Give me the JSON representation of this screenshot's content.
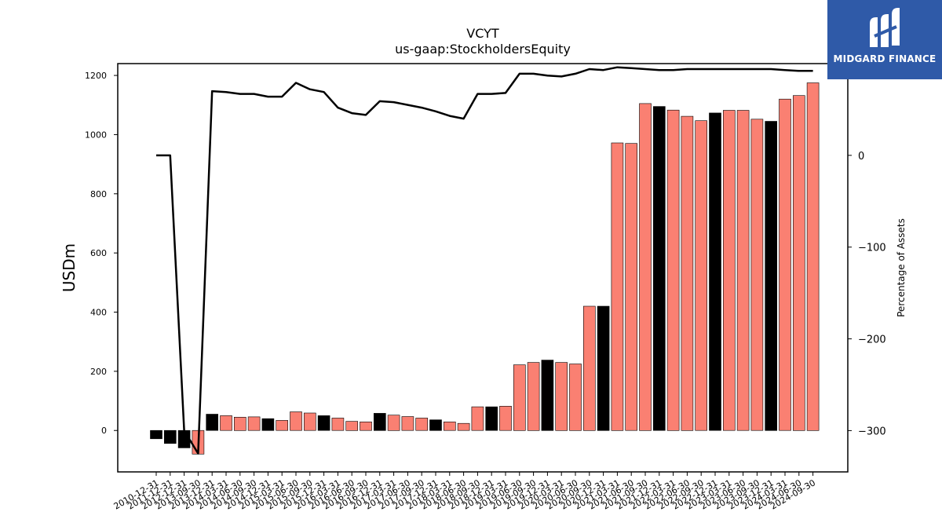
{
  "logo": {
    "text": "MIDGARD FINANCE",
    "color": "#2f5aa8"
  },
  "chart_data": {
    "type": "bar",
    "title": "VCYT",
    "subtitle": "us-gaap:StockholdersEquity",
    "ylabel": "USDm",
    "y2label": "Percentage of Assets",
    "ylim": [
      -140,
      1240
    ],
    "y2lim": [
      -345,
      100
    ],
    "yticks": [
      0,
      200,
      400,
      600,
      800,
      1000,
      1200
    ],
    "y2ticks": [
      0,
      -100,
      -200,
      -300
    ],
    "y2ticklabels": [
      "0",
      "−100",
      "−200",
      "−300"
    ],
    "bar_colors": {
      "annual": "#000000",
      "quarterly": "#fa8072"
    },
    "line_color": "#000000",
    "categories": [
      "2010-12-31",
      "2011-12-31",
      "2012-12-31",
      "2013-09-30",
      "2013-12-31",
      "2014-03-31",
      "2014-06-30",
      "2014-09-30",
      "2014-12-31",
      "2015-03-31",
      "2015-06-30",
      "2015-09-30",
      "2015-12-31",
      "2016-03-31",
      "2016-06-30",
      "2016-09-30",
      "2016-12-31",
      "2017-03-31",
      "2017-06-30",
      "2017-09-30",
      "2017-12-31",
      "2018-03-31",
      "2018-06-30",
      "2018-09-30",
      "2018-12-31",
      "2019-03-31",
      "2019-06-30",
      "2019-09-30",
      "2019-12-31",
      "2020-03-31",
      "2020-06-30",
      "2020-09-30",
      "2020-12-31",
      "2021-03-31",
      "2021-06-30",
      "2021-09-30",
      "2021-12-31",
      "2022-03-31",
      "2022-06-30",
      "2022-09-30",
      "2022-12-31",
      "2023-03-31",
      "2023-06-30",
      "2023-09-30",
      "2023-12-31",
      "2024-03-31",
      "2024-06-30",
      "2024-09-30"
    ],
    "x_tick_labels": [
      "2010-12-31",
      "2011-12-31",
      "2012-12-31",
      "2013-09-30",
      "2013-12-31",
      "2014-03-31",
      "2014-06-30",
      "2014-09-30",
      "2014-12-31",
      "2015-03-31",
      "2015-06-30",
      "2015-09-30",
      "2015-12-31",
      "2016-03-31",
      "2016-06-30",
      "2016-09-30",
      "2016-12-31",
      "2017-03-31",
      "2017-06-30",
      "2017-09-30",
      "2017-12-31",
      "2018-03-31",
      "2018-06-30",
      "2018-09-30",
      "2018-12-31",
      "2019-03-31",
      "2019-06-30",
      "2019-09-30",
      "2019-12-31",
      "2020-03-31",
      "2020-06-30",
      "2020-09-30",
      "2020-12-31",
      "2021-03-31",
      "2021-06-30",
      "2021-09-30",
      "2021-12-31",
      "2022-03-31",
      "2022-06-30",
      "2022-09-30",
      "2022-12-31",
      "2023-03-31",
      "2023-06-30",
      "2023-09-30",
      "2023-12-31",
      "2024-03-31",
      "2024-06-30",
      "2024-09-30"
    ],
    "series": [
      {
        "kind": "bar",
        "values": [
          -28,
          -44,
          -59,
          -80,
          55,
          50,
          45,
          46,
          40,
          34,
          63,
          59,
          50,
          42,
          31,
          29,
          58,
          52,
          47,
          42,
          36,
          29,
          24,
          80,
          80,
          82,
          222,
          230,
          238,
          230,
          225,
          420,
          420,
          972,
          970,
          1105,
          1095,
          1083,
          1062,
          1047,
          1073,
          1082,
          1082,
          1052,
          1045,
          1120,
          1132,
          1175
        ],
        "annual": [
          true,
          true,
          true,
          false,
          true,
          false,
          false,
          false,
          true,
          false,
          false,
          false,
          true,
          false,
          false,
          false,
          true,
          false,
          false,
          false,
          true,
          false,
          false,
          false,
          true,
          false,
          false,
          false,
          true,
          false,
          false,
          false,
          true,
          false,
          false,
          false,
          true,
          false,
          false,
          false,
          true,
          false,
          false,
          false,
          true,
          false,
          false,
          false
        ]
      },
      {
        "kind": "line",
        "axis": "right",
        "values": [
          0,
          0,
          -300,
          -325,
          70,
          69,
          67,
          67,
          64,
          64,
          79,
          72,
          69,
          52,
          46,
          44,
          59,
          58,
          55,
          52,
          48,
          43,
          40,
          67,
          67,
          68,
          89,
          89,
          87,
          86,
          89,
          94,
          93,
          96,
          95,
          94,
          93,
          93,
          94,
          94,
          94,
          94,
          94,
          94,
          94,
          93,
          92,
          92
        ]
      }
    ]
  }
}
